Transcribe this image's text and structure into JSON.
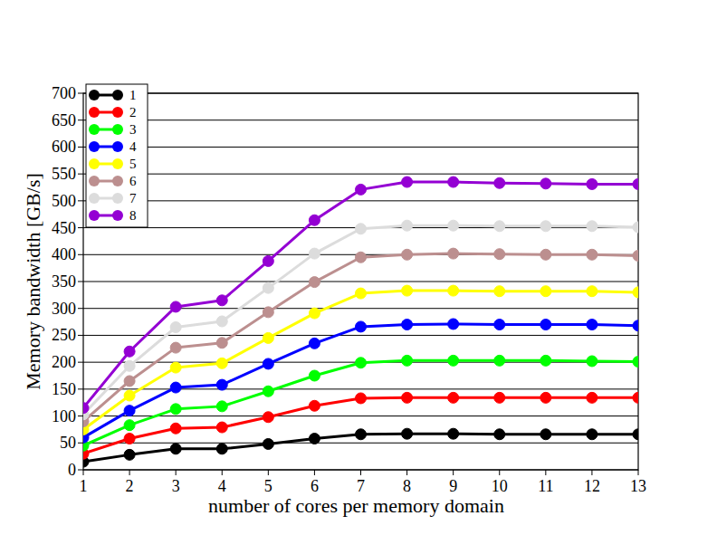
{
  "chart_data": {
    "type": "line",
    "x_label": "number of cores per memory domain",
    "y_label": "Memory bandwidth [GB/s]",
    "x": [
      1,
      2,
      3,
      4,
      5,
      6,
      7,
      8,
      9,
      10,
      11,
      12,
      13
    ],
    "xlim": [
      1,
      13
    ],
    "xticks": [
      1,
      2,
      3,
      4,
      5,
      6,
      7,
      8,
      9,
      10,
      11,
      12,
      13
    ],
    "ylim": [
      0,
      700
    ],
    "yticks": [
      0,
      50,
      100,
      150,
      200,
      250,
      300,
      350,
      400,
      450,
      500,
      550,
      600,
      650,
      700
    ],
    "grid": true,
    "legend": "top-left",
    "marker": "circle",
    "line_style": "solid",
    "series": [
      {
        "name": "1",
        "color": "#000000",
        "values": [
          15,
          28,
          39,
          39,
          48,
          58,
          66,
          67,
          67,
          66,
          66,
          66,
          66
        ]
      },
      {
        "name": "2",
        "color": "#ff0000",
        "values": [
          30,
          58,
          77,
          79,
          98,
          119,
          133,
          134,
          134,
          134,
          134,
          134,
          134
        ]
      },
      {
        "name": "3",
        "color": "#00ff00",
        "values": [
          45,
          83,
          113,
          118,
          146,
          175,
          199,
          203,
          203,
          203,
          203,
          202,
          201
        ]
      },
      {
        "name": "4",
        "color": "#0000ff",
        "values": [
          60,
          110,
          153,
          158,
          197,
          235,
          266,
          270,
          271,
          270,
          270,
          270,
          268
        ]
      },
      {
        "name": "5",
        "color": "#ffff00",
        "values": [
          75,
          138,
          190,
          198,
          245,
          291,
          328,
          333,
          333,
          332,
          332,
          332,
          330
        ]
      },
      {
        "name": "6",
        "color": "#bc8f8f",
        "values": [
          90,
          165,
          227,
          236,
          293,
          349,
          395,
          400,
          402,
          401,
          400,
          400,
          398
        ]
      },
      {
        "name": "7",
        "color": "#dcdcdc",
        "values": [
          103,
          193,
          265,
          276,
          338,
          402,
          448,
          454,
          454,
          453,
          453,
          453,
          451
        ]
      },
      {
        "name": "8",
        "color": "#9400d3",
        "values": [
          115,
          220,
          303,
          315,
          388,
          464,
          521,
          535,
          535,
          533,
          532,
          531,
          531
        ]
      }
    ]
  }
}
